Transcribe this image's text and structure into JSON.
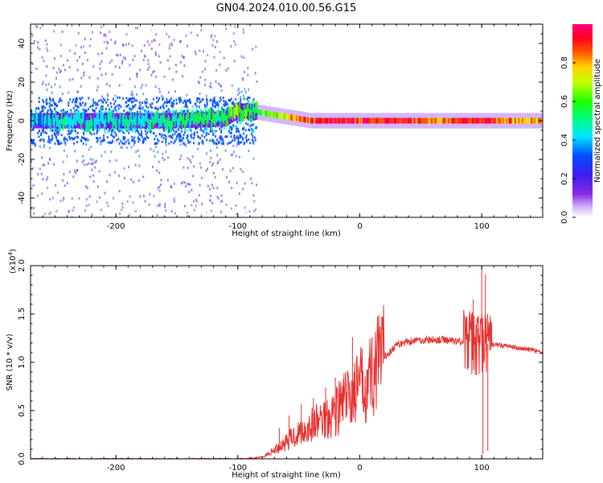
{
  "title": "GN04.2024.010.00.56.G15",
  "chart_data": [
    {
      "type": "heatmap",
      "title": "GN04.2024.010.00.56.G15",
      "xlabel": "Height of straight line (km)",
      "ylabel": "Frequency (Hz)",
      "xlim": [
        -270,
        150
      ],
      "ylim": [
        -50,
        50
      ],
      "xticks": [
        -200,
        -100,
        0,
        100
      ],
      "yticks": [
        -40,
        -20,
        0,
        20,
        40
      ],
      "colorbar": {
        "label": "Normalized spectral amplitude",
        "range": [
          0.0,
          1.0
        ],
        "ticks": [
          0.0,
          0.2,
          0.4,
          0.6,
          0.8
        ],
        "tick_labels": [
          "0.0",
          "0.2",
          "0.4",
          "0.6",
          "0.8"
        ],
        "colormap": "rainbow (white → purple → blue → cyan → green → yellow → red → magenta)"
      },
      "ridge": {
        "description": "dominant frequency ridge vs height",
        "x": [
          -270,
          -200,
          -150,
          -110,
          -100,
          -90,
          -80,
          -60,
          -40,
          -20,
          0,
          20,
          40,
          60,
          80,
          100,
          120,
          150
        ],
        "frequency": [
          0,
          0,
          0,
          1,
          5,
          5,
          4,
          2,
          0,
          0,
          0,
          0,
          0,
          0,
          0,
          0,
          0,
          0
        ],
        "amplitude": [
          0.35,
          0.4,
          0.45,
          0.5,
          0.6,
          0.5,
          0.55,
          0.7,
          0.85,
          0.9,
          0.85,
          0.9,
          0.85,
          0.8,
          0.85,
          0.9,
          0.8,
          0.7
        ]
      },
      "noise_extent_km": [
        -270,
        -85
      ],
      "grid": false
    },
    {
      "type": "line",
      "xlabel": "Height of straight line (km)",
      "ylabel": "SNR (10 * v/v)",
      "y_scale_label": "(x10",
      "y_scale_exp": "4",
      "xlim": [
        -270,
        150
      ],
      "ylim": [
        0,
        20000
      ],
      "xticks": [
        -200,
        -100,
        0,
        100
      ],
      "yticks": [
        0.0,
        0.5,
        1.0,
        1.5,
        2.0
      ],
      "ytick_labels": [
        "0.0",
        "0.5",
        "1.0",
        "1.5",
        "2.0"
      ],
      "series": [
        {
          "color": "#e8312f",
          "x": [
            -270,
            -200,
            -150,
            -100,
            -90,
            -80,
            -70,
            -60,
            -50,
            -40,
            -30,
            -20,
            -10,
            0,
            10,
            20,
            30,
            40,
            50,
            60,
            70,
            80,
            90,
            100,
            110,
            120,
            130,
            140,
            150
          ],
          "y": [
            0,
            10,
            10,
            10,
            30,
            200,
            900,
            1800,
            2700,
            3400,
            4200,
            5000,
            6200,
            7500,
            8900,
            10500,
            11800,
            12200,
            12300,
            12300,
            12300,
            12200,
            12100,
            12000,
            11800,
            11700,
            11500,
            11300,
            11000
          ],
          "spikes": [
            {
              "x": -66,
              "y": 3200
            },
            {
              "x": -58,
              "y": 4500
            },
            {
              "x": -48,
              "y": 5700
            },
            {
              "x": -38,
              "y": 6300
            },
            {
              "x": -28,
              "y": 7400
            },
            {
              "x": -20,
              "y": 8400
            },
            {
              "x": -13,
              "y": 8800
            },
            {
              "x": -6,
              "y": 12600
            },
            {
              "x": 2,
              "y": 11400
            },
            {
              "x": 10,
              "y": 10300
            },
            {
              "x": 90,
              "y": 14500
            },
            {
              "x": 93,
              "y": 16500
            },
            {
              "x": 97,
              "y": 13500
            },
            {
              "x": 100,
              "y": 19800
            },
            {
              "x": 103,
              "y": 19100
            },
            {
              "x": 101,
              "y": 500
            },
            {
              "x": 105,
              "y": 800
            }
          ]
        }
      ],
      "grid": false
    }
  ]
}
